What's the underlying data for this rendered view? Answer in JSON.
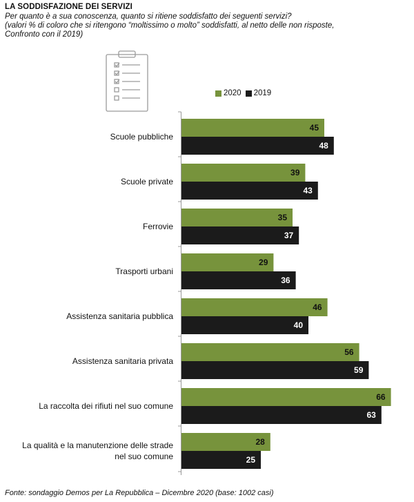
{
  "header": {
    "title": "LA SODDISFAZIONE DEI SERVIZI",
    "subtitle_lines": [
      "Per quanto è a sua conoscenza, quanto si ritiene soddisfatto dei seguenti servizi?",
      "(valori % di coloro che si ritengono “moltissimo o molto” soddisfatti, al netto delle non risposte,",
      "Confronto con il 2019)"
    ]
  },
  "source": "Fonte: sondaggio Demos per La Repubblica – Dicembre 2020 (base: 1002 casi)",
  "colors": {
    "s2020": "#77933c",
    "s2019": "#1b1b1b",
    "axis": "#999999",
    "label_dark": "#111111",
    "label_light": "#ffffff"
  },
  "icons": [
    "clipboard-checklist-icon"
  ],
  "chart_data": {
    "type": "bar",
    "orientation": "horizontal",
    "title": "LA SODDISFAZIONE DEI SERVIZI",
    "categories": [
      "Scuole pubbliche",
      "Scuole private",
      "Ferrovie",
      "Trasporti urbani",
      "Assistenza sanitaria pubblica",
      "Assistenza sanitaria privata",
      "La raccolta dei rifiuti nel suo comune",
      "La qualità e la manutenzione delle strade nel suo comune"
    ],
    "category_lines": [
      [
        "Scuole pubbliche"
      ],
      [
        "Scuole private"
      ],
      [
        "Ferrovie"
      ],
      [
        "Trasporti urbani"
      ],
      [
        "Assistenza sanitaria pubblica"
      ],
      [
        "Assistenza sanitaria privata"
      ],
      [
        "La raccolta dei rifiuti nel suo comune"
      ],
      [
        "La qualità e la manutenzione delle strade",
        "nel suo comune"
      ]
    ],
    "series": [
      {
        "name": "2020",
        "values": [
          45,
          39,
          35,
          29,
          46,
          56,
          66,
          28
        ]
      },
      {
        "name": "2019",
        "values": [
          48,
          43,
          37,
          36,
          40,
          59,
          63,
          25
        ]
      }
    ],
    "xlim": [
      0,
      70
    ],
    "xlabel": "",
    "ylabel": "",
    "grid": false,
    "legend": "top",
    "data_labels": true
  }
}
